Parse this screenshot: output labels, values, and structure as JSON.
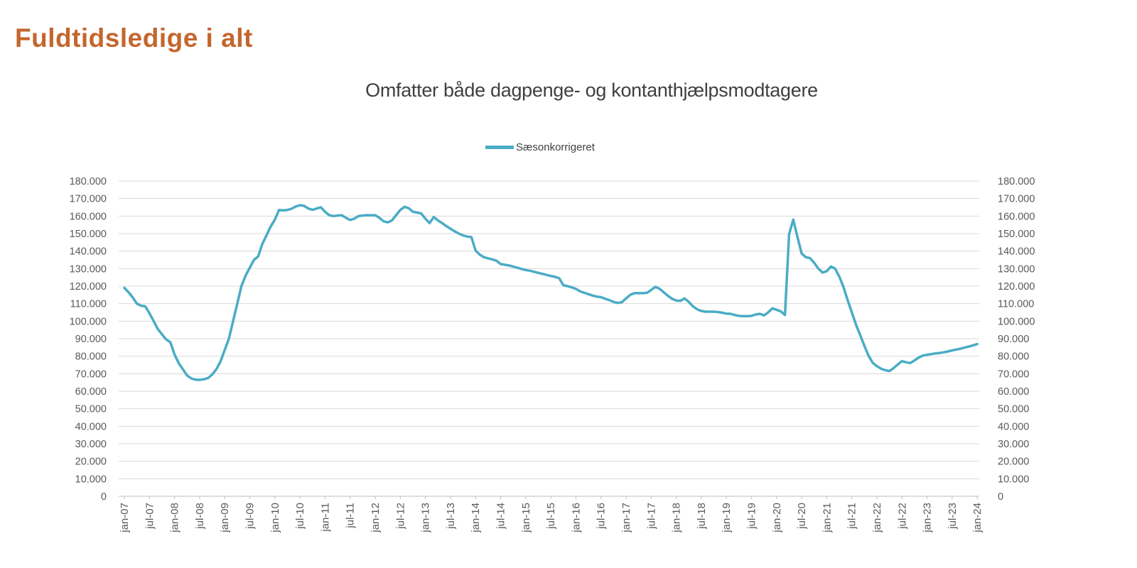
{
  "page": {
    "title": "Fuldtidsledige i alt",
    "chart_title": "Omfatter både dagpenge- og kontanthjælpsmodtagere"
  },
  "legend": {
    "series_label": "Sæsonkorrigeret"
  },
  "colors": {
    "title_text": "#C4662D",
    "subtitle_text": "#3F3F3F",
    "legend_text": "#404040",
    "axis_text": "#595959",
    "gridline": "#D9D9D9",
    "axis_line": "#BFBFBF",
    "series_line": "#4AACC5"
  },
  "chart_data": {
    "type": "line",
    "title": "Omfatter både dagpenge- og kontanthjælpsmodtagere",
    "xlabel": "",
    "ylabel": "",
    "ylim": [
      0,
      180000
    ],
    "y_tick_step": 10000,
    "grid": "horizontal",
    "legend_position": "top-center",
    "y_axis_sides": [
      "left",
      "right"
    ],
    "x_frequency": "monthly",
    "x_start": "jan-07",
    "x_end": "jan-24",
    "x_tick_labels": [
      "jan-07",
      "jul-07",
      "jan-08",
      "jul-08",
      "jan-09",
      "jul-09",
      "jan-10",
      "jul-10",
      "jan-11",
      "jul-11",
      "jan-12",
      "jul-12",
      "jan-13",
      "jul-13",
      "jan-14",
      "jul-14",
      "jan-15",
      "jul-15",
      "jan-16",
      "jul-16",
      "jan-17",
      "jul-17",
      "jan-18",
      "jul-18",
      "jan-19",
      "jul-19",
      "jan-20",
      "jul-20",
      "jan-21",
      "jul-21",
      "jan-22",
      "jul-22",
      "jan-23",
      "jul-23",
      "jan-24"
    ],
    "y_tick_labels": [
      "0",
      "10.000",
      "20.000",
      "30.000",
      "40.000",
      "50.000",
      "60.000",
      "70.000",
      "80.000",
      "90.000",
      "100.000",
      "110.000",
      "120.000",
      "130.000",
      "140.000",
      "150.000",
      "160.000",
      "170.000",
      "180.000"
    ],
    "series": [
      {
        "name": "Sæsonkorrigeret",
        "color": "#4AACC5",
        "values": [
          119000,
          116500,
          113500,
          110000,
          108800,
          108500,
          104500,
          100000,
          95500,
          92500,
          89500,
          88000,
          81000,
          76000,
          72500,
          69000,
          67300,
          66600,
          66500,
          66800,
          67500,
          69500,
          72500,
          77000,
          83500,
          90000,
          100000,
          110000,
          120000,
          126000,
          130500,
          135000,
          137000,
          144000,
          149000,
          154000,
          158000,
          163500,
          163200,
          163500,
          164200,
          165500,
          166200,
          165800,
          164300,
          163600,
          164300,
          165000,
          162500,
          160500,
          160000,
          160300,
          160500,
          159000,
          157800,
          158500,
          160000,
          160300,
          160500,
          160400,
          160500,
          159000,
          157000,
          156400,
          157500,
          160500,
          163500,
          165300,
          164500,
          162500,
          162000,
          161500,
          158500,
          156000,
          159500,
          157500,
          156000,
          154300,
          152800,
          151300,
          150000,
          149000,
          148300,
          148000,
          140300,
          138000,
          136500,
          135900,
          135300,
          134500,
          132600,
          132200,
          131800,
          131200,
          130500,
          129800,
          129200,
          128800,
          128200,
          127600,
          127000,
          126400,
          125800,
          125300,
          124500,
          120500,
          120000,
          119300,
          118400,
          117000,
          116200,
          115400,
          114600,
          114000,
          113700,
          112800,
          112000,
          111000,
          110400,
          110800,
          113000,
          115000,
          116000,
          116000,
          116000,
          116200,
          117800,
          119600,
          118500,
          116500,
          114500,
          112800,
          111800,
          111600,
          113000,
          111000,
          108500,
          106800,
          105800,
          105400,
          105400,
          105400,
          105200,
          104800,
          104300,
          104200,
          103500,
          103000,
          102900,
          102900,
          103000,
          103800,
          104200,
          103300,
          105000,
          107300,
          106500,
          105600,
          103500,
          149500,
          158000,
          148000,
          138600,
          136500,
          136000,
          133200,
          130000,
          127800,
          128500,
          131200,
          130000,
          125500,
          119500,
          112000,
          105000,
          98000,
          92000,
          86000,
          80300,
          76200,
          74300,
          72800,
          72000,
          71500,
          73200,
          75300,
          77200,
          76500,
          76100,
          77600,
          79200,
          80300,
          80800,
          81200,
          81600,
          81800,
          82200,
          82700,
          83300,
          83800,
          84300,
          84900,
          85500,
          86200,
          86900
        ]
      }
    ]
  }
}
